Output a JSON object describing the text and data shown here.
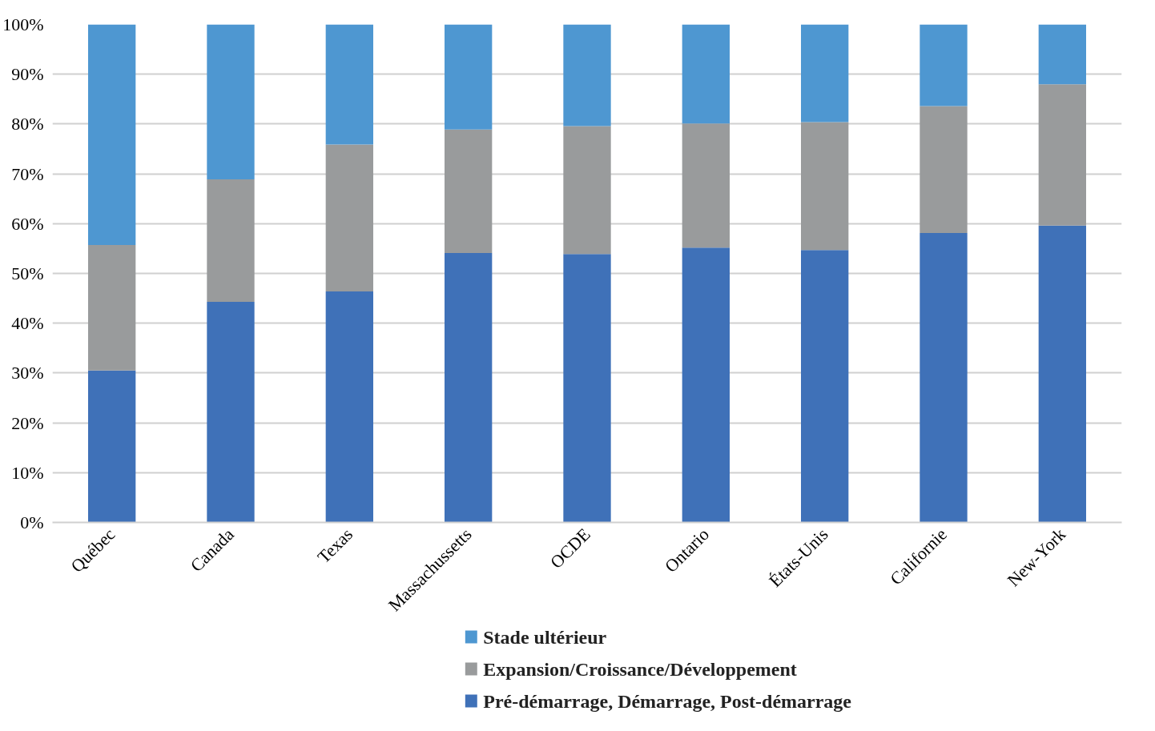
{
  "chart_data": {
    "type": "bar",
    "stacked": true,
    "categories": [
      "Québec",
      "Canada",
      "Texas",
      "Massachussetts",
      "OCDE",
      "Ontario",
      "États-Unis",
      "Californie",
      "New-York"
    ],
    "series": [
      {
        "name": "Pré-démarrage, Démarrage, Post-démarrage",
        "color": "#3f71b8",
        "values": [
          30.5,
          44.3,
          46.4,
          54.1,
          53.9,
          55.2,
          54.7,
          58.1,
          59.6
        ]
      },
      {
        "name": "Expansion/Croissance/Développement",
        "color": "#999b9c",
        "values": [
          25.2,
          24.6,
          29.5,
          24.8,
          25.7,
          24.9,
          25.7,
          25.5,
          28.4
        ]
      },
      {
        "name": "Stade ultérieur",
        "color": "#4e97d1",
        "values": [
          44.3,
          31.1,
          24.1,
          21.1,
          20.4,
          19.9,
          19.6,
          16.4,
          12.0
        ]
      }
    ],
    "ylim": [
      0,
      100
    ],
    "yticks": [
      {
        "value": 0,
        "label": "0%"
      },
      {
        "value": 10,
        "label": "10%"
      },
      {
        "value": 20,
        "label": "20%"
      },
      {
        "value": 30,
        "label": "30%"
      },
      {
        "value": 40,
        "label": "40%"
      },
      {
        "value": 50,
        "label": "50%"
      },
      {
        "value": 60,
        "label": "60%"
      },
      {
        "value": 70,
        "label": "70%"
      },
      {
        "value": 80,
        "label": "80%"
      },
      {
        "value": 90,
        "label": "90%"
      },
      {
        "value": 100,
        "label": "100%"
      }
    ],
    "grid": "y",
    "legend": "bottom"
  }
}
